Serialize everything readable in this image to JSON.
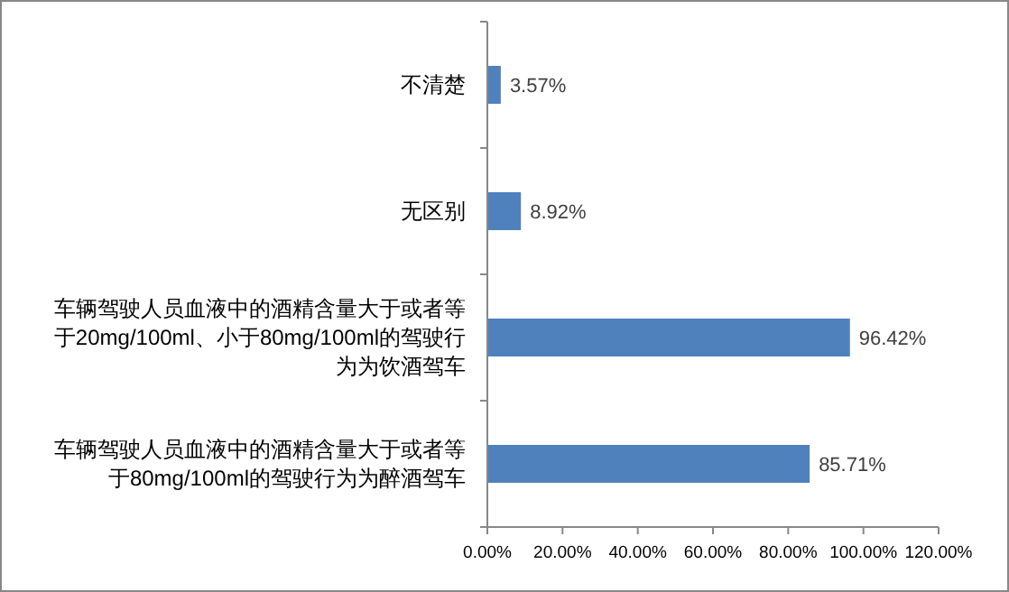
{
  "chart_data": {
    "type": "bar",
    "orientation": "horizontal",
    "categories": [
      "不清楚",
      "无区别",
      "车辆驾驶人员血液中的酒精含量大于或者等于20mg/100ml、小于80mg/100ml的驾驶行为为饮酒驾车",
      "车辆驾驶人员血液中的酒精含量大于或者等于80mg/100ml的驾驶行为为醉酒驾车"
    ],
    "values": [
      3.57,
      8.92,
      96.42,
      85.71
    ],
    "value_labels": [
      "3.57%",
      "8.92%",
      "96.42%",
      "85.71%"
    ],
    "color": "#4f81bd",
    "xlim": [
      0,
      120
    ],
    "xticks": [
      {
        "value": 0,
        "label": "0.00%"
      },
      {
        "value": 20,
        "label": "20.00%"
      },
      {
        "value": 40,
        "label": "40.00%"
      },
      {
        "value": 60,
        "label": "60.00%"
      },
      {
        "value": 80,
        "label": "80.00%"
      },
      {
        "value": 100,
        "label": "100.00%"
      },
      {
        "value": 120,
        "label": "120.00%"
      }
    ]
  }
}
